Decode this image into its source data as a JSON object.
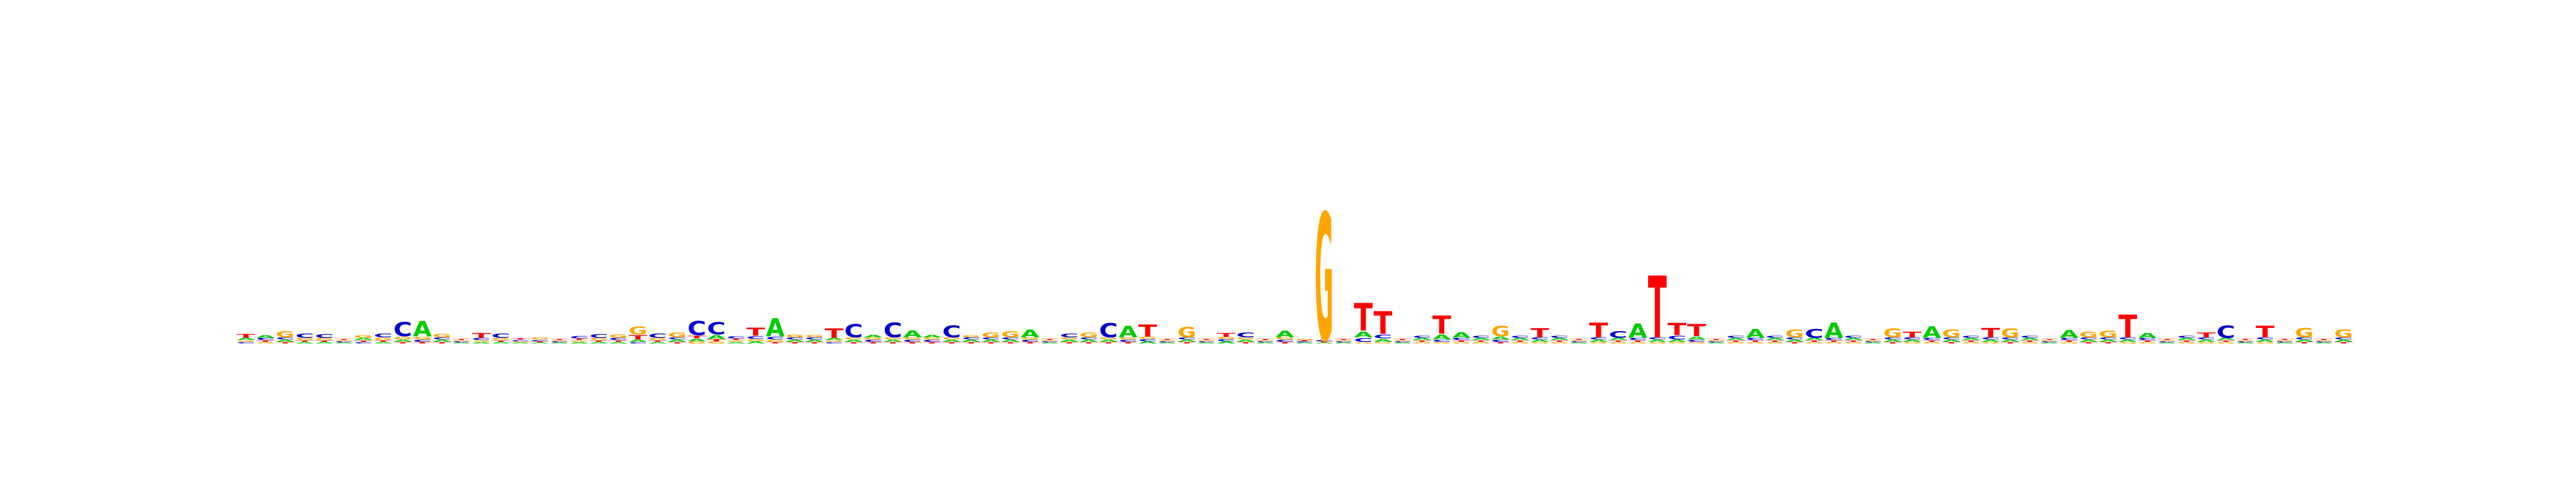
{
  "colors": {
    "A": "#00cc00",
    "C": "#0000cc",
    "G": "#ffa500",
    "T": "#ff0000"
  },
  "chart_data": {
    "type": "sequence-logo",
    "title": "",
    "xlabel": "",
    "ylabel": "",
    "alphabet": [
      "A",
      "C",
      "G",
      "T"
    ],
    "positions": [
      {
        "A": 0.04,
        "C": 0.03,
        "G": 0.03,
        "T": 0.08
      },
      {
        "A": 0.06,
        "C": 0.04,
        "G": 0.03,
        "T": 0.03
      },
      {
        "A": 0.04,
        "C": 0.04,
        "G": 0.13,
        "T": 0.03
      },
      {
        "A": 0.03,
        "C": 0.09,
        "G": 0.04,
        "T": 0.03
      },
      {
        "A": 0.03,
        "C": 0.08,
        "G": 0.04,
        "T": 0.03
      },
      {
        "A": 0.02,
        "C": 0.02,
        "G": 0.02,
        "T": 0.02
      },
      {
        "A": 0.04,
        "C": 0.03,
        "G": 0.06,
        "T": 0.03
      },
      {
        "A": 0.03,
        "C": 0.08,
        "G": 0.05,
        "T": 0.03
      },
      {
        "A": 0.04,
        "C": 0.3,
        "G": 0.06,
        "T": 0.03
      },
      {
        "A": 0.32,
        "C": 0.04,
        "G": 0.06,
        "T": 0.03
      },
      {
        "A": 0.04,
        "C": 0.04,
        "G": 0.07,
        "T": 0.03
      },
      {
        "A": 0.02,
        "C": 0.02,
        "G": 0.02,
        "T": 0.02
      },
      {
        "A": 0.03,
        "C": 0.04,
        "G": 0.03,
        "T": 0.1
      },
      {
        "A": 0.03,
        "C": 0.09,
        "G": 0.04,
        "T": 0.03
      },
      {
        "A": 0.02,
        "C": 0.03,
        "G": 0.02,
        "T": 0.03
      },
      {
        "A": 0.02,
        "C": 0.03,
        "G": 0.04,
        "T": 0.02
      },
      {
        "A": 0.02,
        "C": 0.02,
        "G": 0.02,
        "T": 0.02
      },
      {
        "A": 0.03,
        "C": 0.05,
        "G": 0.03,
        "T": 0.03
      },
      {
        "A": 0.03,
        "C": 0.08,
        "G": 0.04,
        "T": 0.03
      },
      {
        "A": 0.03,
        "C": 0.04,
        "G": 0.07,
        "T": 0.03
      },
      {
        "A": 0.04,
        "C": 0.03,
        "G": 0.16,
        "T": 0.09
      },
      {
        "A": 0.03,
        "C": 0.09,
        "G": 0.04,
        "T": 0.03
      },
      {
        "A": 0.04,
        "C": 0.04,
        "G": 0.1,
        "T": 0.03
      },
      {
        "A": 0.05,
        "C": 0.3,
        "G": 0.04,
        "T": 0.06
      },
      {
        "A": 0.08,
        "C": 0.26,
        "G": 0.04,
        "T": 0.04
      },
      {
        "A": 0.03,
        "C": 0.04,
        "G": 0.03,
        "T": 0.03
      },
      {
        "A": 0.04,
        "C": 0.06,
        "G": 0.04,
        "T": 0.17
      },
      {
        "A": 0.38,
        "C": 0.06,
        "G": 0.04,
        "T": 0.03
      },
      {
        "A": 0.04,
        "C": 0.04,
        "G": 0.06,
        "T": 0.03
      },
      {
        "A": 0.04,
        "C": 0.04,
        "G": 0.05,
        "T": 0.03
      },
      {
        "A": 0.04,
        "C": 0.03,
        "G": 0.03,
        "T": 0.2
      },
      {
        "A": 0.04,
        "C": 0.28,
        "G": 0.04,
        "T": 0.03
      },
      {
        "A": 0.05,
        "C": 0.04,
        "G": 0.04,
        "T": 0.03
      },
      {
        "A": 0.04,
        "C": 0.31,
        "G": 0.04,
        "T": 0.03
      },
      {
        "A": 0.15,
        "C": 0.04,
        "G": 0.04,
        "T": 0.03
      },
      {
        "A": 0.05,
        "C": 0.04,
        "G": 0.04,
        "T": 0.03
      },
      {
        "A": 0.04,
        "C": 0.25,
        "G": 0.04,
        "T": 0.03
      },
      {
        "A": 0.04,
        "C": 0.04,
        "G": 0.04,
        "T": 0.03
      },
      {
        "A": 0.04,
        "C": 0.04,
        "G": 0.1,
        "T": 0.03
      },
      {
        "A": 0.04,
        "C": 0.04,
        "G": 0.13,
        "T": 0.03
      },
      {
        "A": 0.16,
        "C": 0.04,
        "G": 0.04,
        "T": 0.03
      },
      {
        "A": 0.02,
        "C": 0.02,
        "G": 0.02,
        "T": 0.02
      },
      {
        "A": 0.04,
        "C": 0.08,
        "G": 0.04,
        "T": 0.03
      },
      {
        "A": 0.04,
        "C": 0.04,
        "G": 0.1,
        "T": 0.03
      },
      {
        "A": 0.04,
        "C": 0.3,
        "G": 0.04,
        "T": 0.03
      },
      {
        "A": 0.24,
        "C": 0.04,
        "G": 0.04,
        "T": 0.03
      },
      {
        "A": 0.04,
        "C": 0.04,
        "G": 0.04,
        "T": 0.26
      },
      {
        "A": 0.02,
        "C": 0.02,
        "G": 0.02,
        "T": 0.02
      },
      {
        "A": 0.04,
        "C": 0.04,
        "G": 0.22,
        "T": 0.03
      },
      {
        "A": 0.02,
        "C": 0.02,
        "G": 0.02,
        "T": 0.02
      },
      {
        "A": 0.04,
        "C": 0.04,
        "G": 0.04,
        "T": 0.08
      },
      {
        "A": 0.04,
        "C": 0.1,
        "G": 0.04,
        "T": 0.03
      },
      {
        "A": 0.02,
        "C": 0.02,
        "G": 0.02,
        "T": 0.02
      },
      {
        "A": 0.14,
        "C": 0.04,
        "G": 0.04,
        "T": 0.03
      },
      {
        "A": 0.02,
        "C": 0.02,
        "G": 0.03,
        "T": 0.02
      },
      {
        "A": 0.02,
        "C": 0.03,
        "G": 2.68,
        "T": 0.02
      },
      {
        "A": 0.02,
        "C": 0.02,
        "G": 0.02,
        "T": 0.02
      },
      {
        "A": 0.12,
        "C": 0.08,
        "G": 0.03,
        "T": 0.58
      },
      {
        "A": 0.06,
        "C": 0.08,
        "G": 0.03,
        "T": 0.48
      },
      {
        "A": 0.02,
        "C": 0.02,
        "G": 0.02,
        "T": 0.02
      },
      {
        "A": 0.04,
        "C": 0.04,
        "G": 0.03,
        "T": 0.03
      },
      {
        "A": 0.1,
        "C": 0.04,
        "G": 0.03,
        "T": 0.38
      },
      {
        "A": 0.12,
        "C": 0.04,
        "G": 0.03,
        "T": 0.03
      },
      {
        "A": 0.04,
        "C": 0.04,
        "G": 0.03,
        "T": 0.03
      },
      {
        "A": 0.06,
        "C": 0.04,
        "G": 0.22,
        "T": 0.03
      },
      {
        "A": 0.04,
        "C": 0.04,
        "G": 0.03,
        "T": 0.03
      },
      {
        "A": 0.04,
        "C": 0.04,
        "G": 0.03,
        "T": 0.19
      },
      {
        "A": 0.04,
        "C": 0.04,
        "G": 0.03,
        "T": 0.03
      },
      {
        "A": 0.02,
        "C": 0.02,
        "G": 0.02,
        "T": 0.02
      },
      {
        "A": 0.04,
        "C": 0.04,
        "G": 0.03,
        "T": 0.31
      },
      {
        "A": 0.04,
        "C": 0.14,
        "G": 0.03,
        "T": 0.03
      },
      {
        "A": 0.3,
        "C": 0.04,
        "G": 0.03,
        "T": 0.03
      },
      {
        "A": 0.04,
        "C": 0.04,
        "G": 0.03,
        "T": 1.3
      },
      {
        "A": 0.04,
        "C": 0.08,
        "G": 0.03,
        "T": 0.26
      },
      {
        "A": 0.06,
        "C": 0.04,
        "G": 0.03,
        "T": 0.26
      },
      {
        "A": 0.02,
        "C": 0.02,
        "G": 0.02,
        "T": 0.02
      },
      {
        "A": 0.04,
        "C": 0.04,
        "G": 0.03,
        "T": 0.03
      },
      {
        "A": 0.18,
        "C": 0.04,
        "G": 0.03,
        "T": 0.03
      },
      {
        "A": 0.04,
        "C": 0.04,
        "G": 0.03,
        "T": 0.03
      },
      {
        "A": 0.04,
        "C": 0.04,
        "G": 0.16,
        "T": 0.03
      },
      {
        "A": 0.04,
        "C": 0.18,
        "G": 0.03,
        "T": 0.03
      },
      {
        "A": 0.32,
        "C": 0.04,
        "G": 0.03,
        "T": 0.03
      },
      {
        "A": 0.04,
        "C": 0.04,
        "G": 0.03,
        "T": 0.03
      },
      {
        "A": 0.02,
        "C": 0.02,
        "G": 0.02,
        "T": 0.02
      },
      {
        "A": 0.04,
        "C": 0.04,
        "G": 0.18,
        "T": 0.03
      },
      {
        "A": 0.04,
        "C": 0.04,
        "G": 0.03,
        "T": 0.12
      },
      {
        "A": 0.24,
        "C": 0.04,
        "G": 0.03,
        "T": 0.03
      },
      {
        "A": 0.04,
        "C": 0.04,
        "G": 0.16,
        "T": 0.03
      },
      {
        "A": 0.04,
        "C": 0.04,
        "G": 0.03,
        "T": 0.03
      },
      {
        "A": 0.04,
        "C": 0.04,
        "G": 0.03,
        "T": 0.2
      },
      {
        "A": 0.04,
        "C": 0.04,
        "G": 0.18,
        "T": 0.03
      },
      {
        "A": 0.04,
        "C": 0.04,
        "G": 0.03,
        "T": 0.03
      },
      {
        "A": 0.02,
        "C": 0.02,
        "G": 0.02,
        "T": 0.02
      },
      {
        "A": 0.16,
        "C": 0.04,
        "G": 0.03,
        "T": 0.03
      },
      {
        "A": 0.04,
        "C": 0.04,
        "G": 0.12,
        "T": 0.03
      },
      {
        "A": 0.04,
        "C": 0.04,
        "G": 0.14,
        "T": 0.03
      },
      {
        "A": 0.04,
        "C": 0.04,
        "G": 0.03,
        "T": 0.48
      },
      {
        "A": 0.1,
        "C": 0.04,
        "G": 0.03,
        "T": 0.03
      },
      {
        "A": 0.02,
        "C": 0.02,
        "G": 0.02,
        "T": 0.02
      },
      {
        "A": 0.04,
        "C": 0.04,
        "G": 0.03,
        "T": 0.03
      },
      {
        "A": 0.04,
        "C": 0.04,
        "G": 0.03,
        "T": 0.1
      },
      {
        "A": 0.04,
        "C": 0.26,
        "G": 0.03,
        "T": 0.03
      },
      {
        "A": 0.02,
        "C": 0.02,
        "G": 0.02,
        "T": 0.02
      },
      {
        "A": 0.04,
        "C": 0.04,
        "G": 0.03,
        "T": 0.24
      },
      {
        "A": 0.02,
        "C": 0.02,
        "G": 0.02,
        "T": 0.02
      },
      {
        "A": 0.04,
        "C": 0.04,
        "G": 0.2,
        "T": 0.03
      },
      {
        "A": 0.02,
        "C": 0.02,
        "G": 0.02,
        "T": 0.02
      },
      {
        "A": 0.04,
        "C": 0.04,
        "G": 0.16,
        "T": 0.03
      }
    ]
  }
}
